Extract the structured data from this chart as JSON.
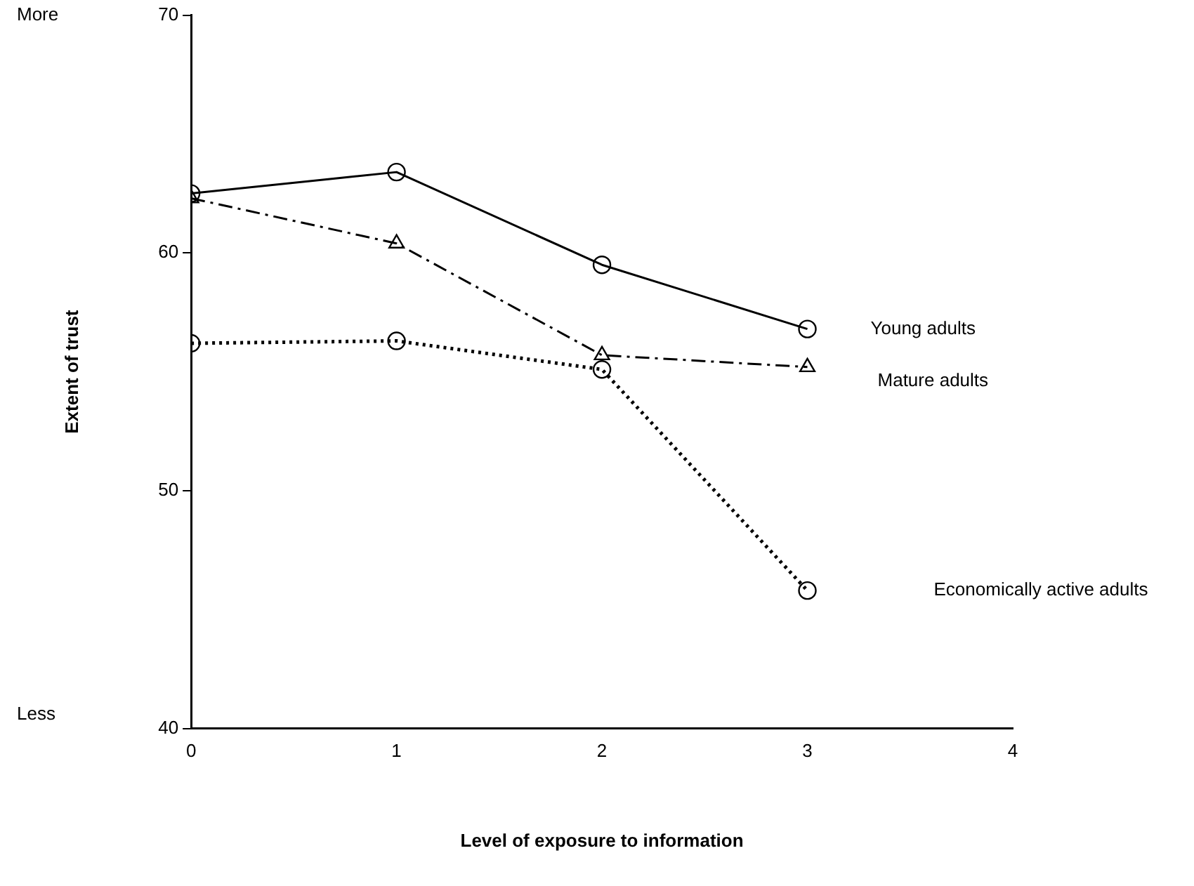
{
  "chart_data": {
    "type": "line",
    "xlabel": "Level of exposure to information",
    "ylabel": "Extent of trust",
    "x": [
      0,
      1,
      2,
      3
    ],
    "xlim": [
      0,
      4
    ],
    "xticks": [
      0,
      1,
      2,
      3,
      4
    ],
    "ylim": [
      40,
      70
    ],
    "yticks": [
      40,
      50,
      60,
      70
    ],
    "grid": false,
    "legend": false,
    "annotations": [
      "More",
      "Less"
    ],
    "series": [
      {
        "name": "Young adults",
        "color": "#000000",
        "values": [
          62.5,
          63.4,
          59.5,
          56.8
        ],
        "marker": "circle",
        "line_style": "solid"
      },
      {
        "name": "Mature adults",
        "color": "#000000",
        "values": [
          62.3,
          60.4,
          55.7,
          55.2
        ],
        "marker": "triangle",
        "line_style": "dashed"
      },
      {
        "name": "Economically active adults",
        "color": "#000000",
        "values": [
          56.2,
          56.3,
          55.1,
          45.8
        ],
        "marker": "circle",
        "line_style": "dotted"
      }
    ]
  }
}
